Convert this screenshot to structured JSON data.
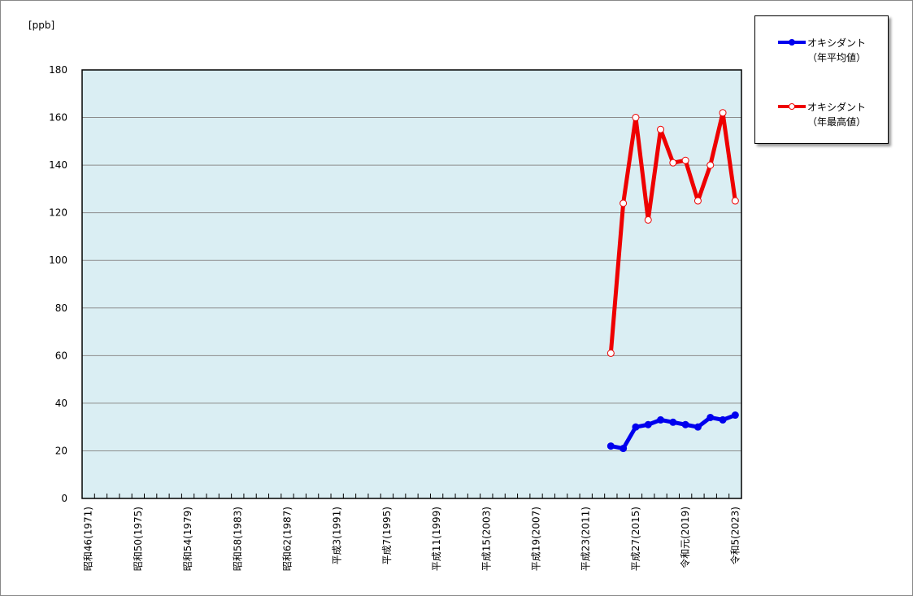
{
  "chart_data": {
    "type": "line",
    "y_label": "[ppb]",
    "categories": [
      "昭和46(1971)",
      null,
      null,
      null,
      "昭和50(1975)",
      null,
      null,
      null,
      "昭和54(1979)",
      null,
      null,
      null,
      "昭和58(1983)",
      null,
      null,
      null,
      "昭和62(1987)",
      null,
      null,
      null,
      "平成3(1991)",
      null,
      null,
      null,
      "平成7(1995)",
      null,
      null,
      null,
      "平成11(1999)",
      null,
      null,
      null,
      "平成15(2003)",
      null,
      null,
      null,
      "平成19(2007)",
      null,
      null,
      null,
      "平成23(2011)",
      null,
      null,
      null,
      "平成27(2015)",
      null,
      null,
      null,
      "令和元(2019)",
      null,
      null,
      null,
      "令和5(2023)"
    ],
    "series": [
      {
        "name": "オキシダント\n（年平均値）",
        "color": "#0000ee",
        "marker": "filled",
        "values": [
          null,
          null,
          null,
          null,
          null,
          null,
          null,
          null,
          null,
          null,
          null,
          null,
          null,
          null,
          null,
          null,
          null,
          null,
          null,
          null,
          null,
          null,
          null,
          null,
          null,
          null,
          null,
          null,
          null,
          null,
          null,
          null,
          null,
          null,
          null,
          null,
          null,
          null,
          null,
          null,
          null,
          null,
          22,
          21,
          30,
          31,
          33,
          32,
          31,
          30,
          34,
          33,
          35
        ]
      },
      {
        "name": "オキシダント\n（年最高値）",
        "color": "#ee0000",
        "marker": "hollow",
        "values": [
          null,
          null,
          null,
          null,
          null,
          null,
          null,
          null,
          null,
          null,
          null,
          null,
          null,
          null,
          null,
          null,
          null,
          null,
          null,
          null,
          null,
          null,
          null,
          null,
          null,
          null,
          null,
          null,
          null,
          null,
          null,
          null,
          null,
          null,
          null,
          null,
          null,
          null,
          null,
          null,
          null,
          null,
          61,
          124,
          160,
          117,
          155,
          141,
          142,
          125,
          140,
          162,
          125
        ]
      }
    ],
    "ylim": [
      0,
      180
    ],
    "yticks": [
      0,
      20,
      40,
      60,
      80,
      100,
      120,
      140,
      160,
      180
    ],
    "grid": true
  }
}
